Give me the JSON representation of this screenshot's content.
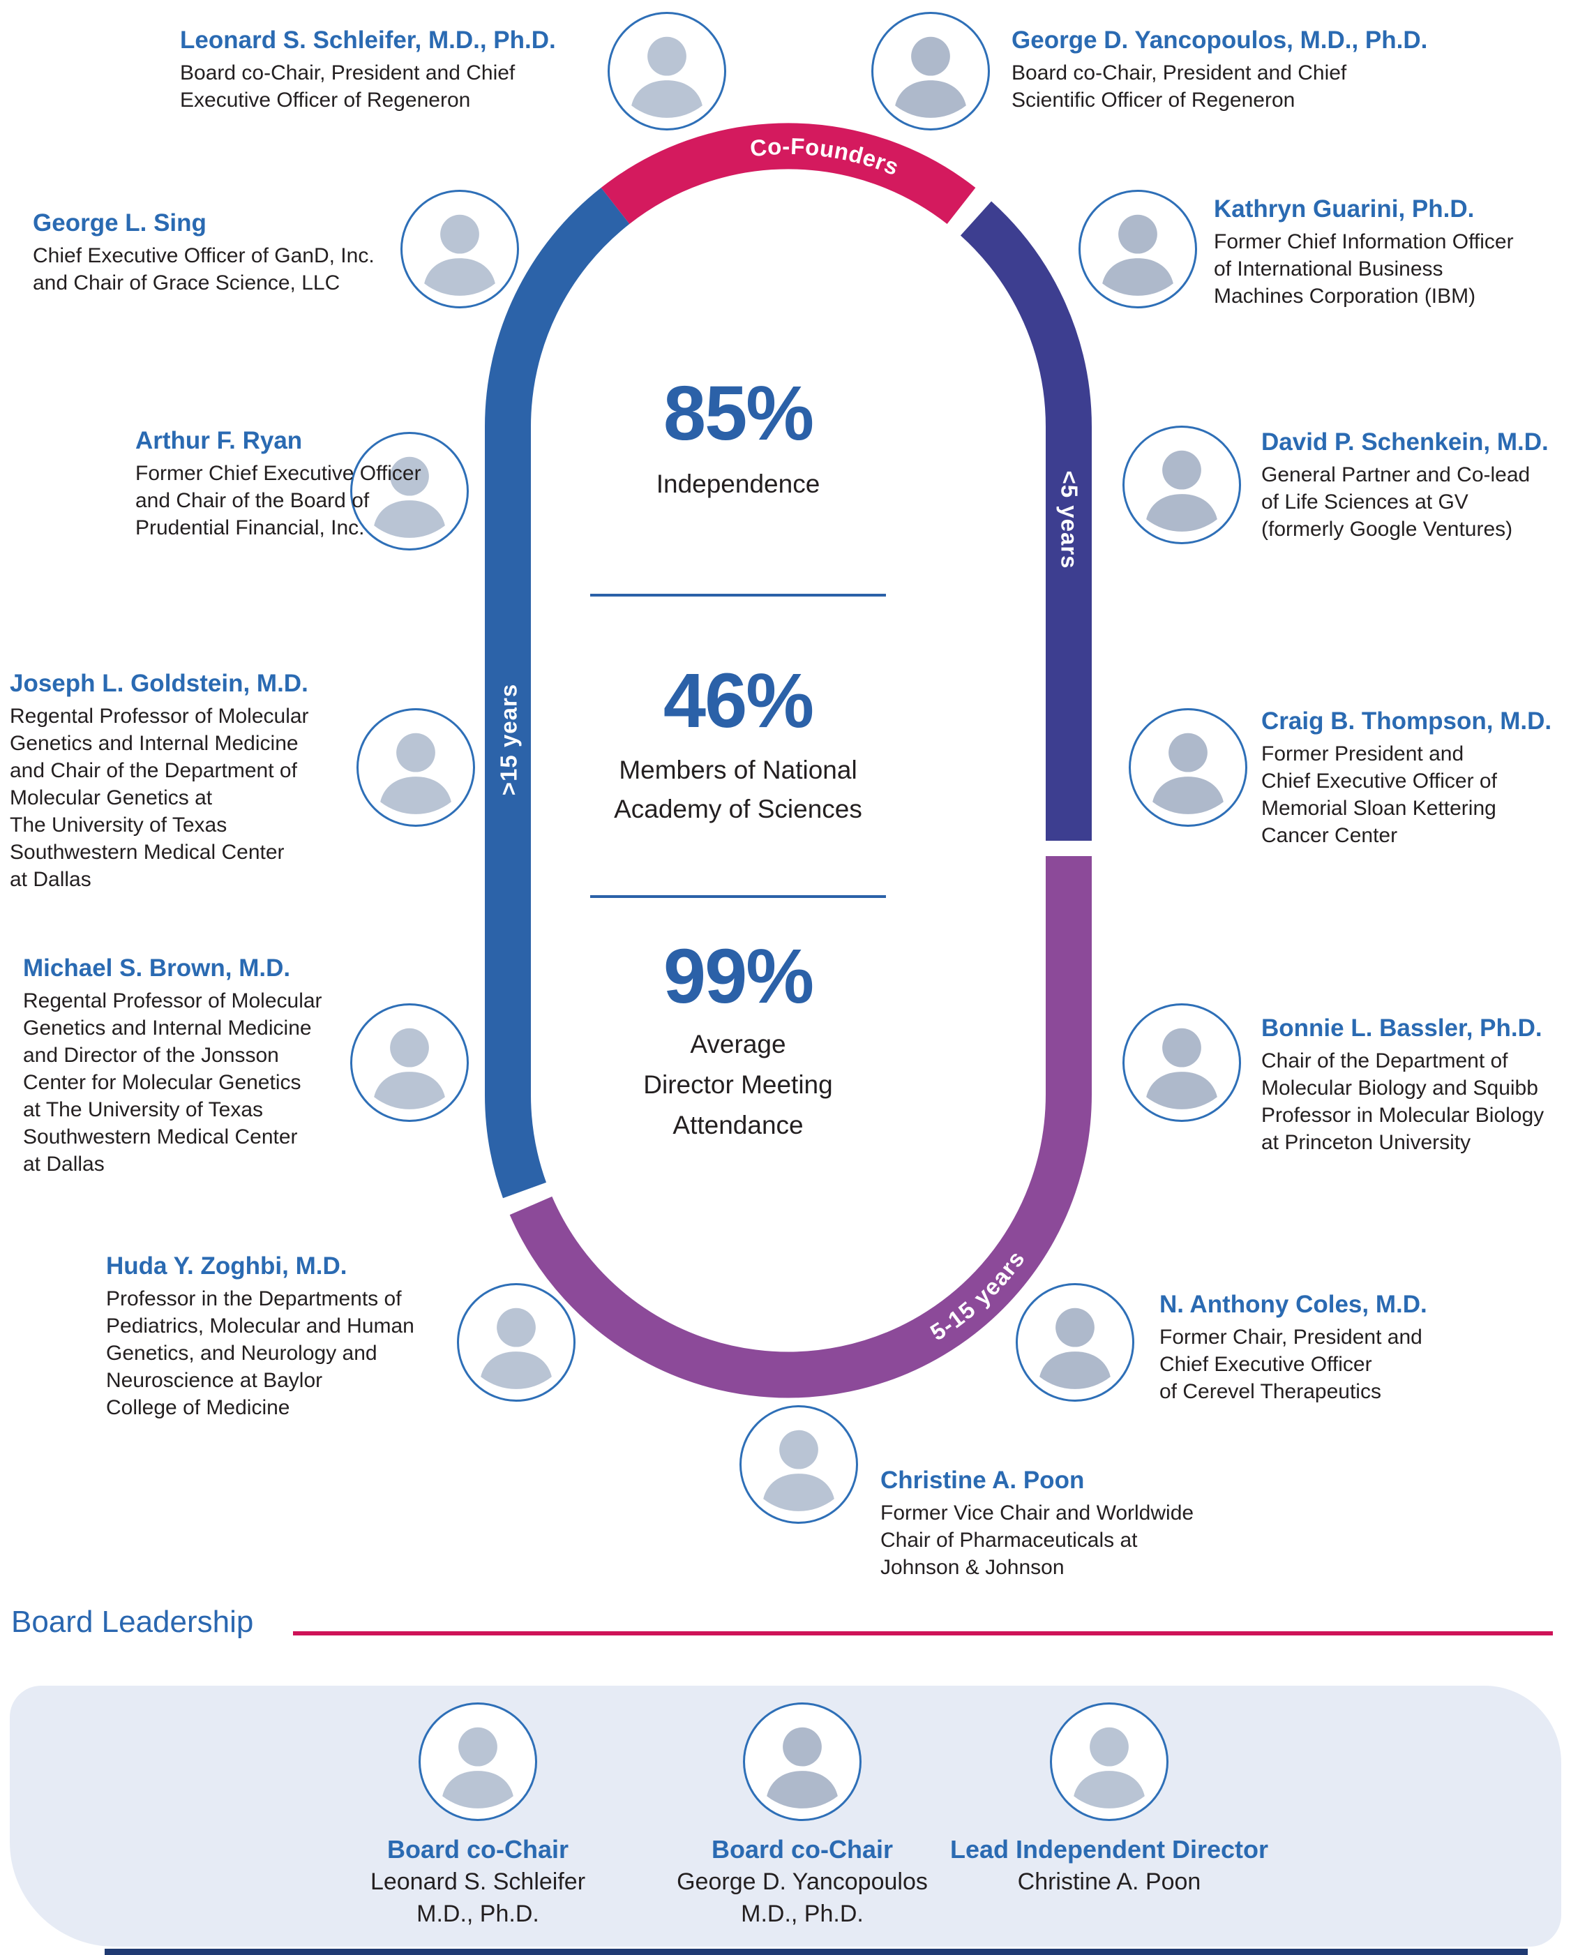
{
  "ring": {
    "segments": [
      {
        "id": "co-founders",
        "label": "Co-Founders",
        "color": "#d41a5e"
      },
      {
        "id": "less-5-years",
        "label": "<5 years",
        "color": "#3d3e90"
      },
      {
        "id": "5-15-years",
        "label": "5-15 years",
        "color": "#8c4a99"
      },
      {
        "id": "more-15-years",
        "label": ">15 years",
        "color": "#2c63a9"
      }
    ]
  },
  "stats": [
    {
      "value": "85%",
      "label_lines": [
        "Independence"
      ]
    },
    {
      "value": "46%",
      "label_lines": [
        "Members of National",
        "Academy of Sciences"
      ]
    },
    {
      "value": "99%",
      "label_lines": [
        "Average",
        "Director Meeting",
        "Attendance"
      ]
    }
  ],
  "members": [
    {
      "name": "Leonard S. Schleifer, M.D., Ph.D.",
      "title_lines": [
        "Board co-Chair, President and Chief",
        "Executive Officer of Regeneron"
      ]
    },
    {
      "name": "George D. Yancopoulos, M.D., Ph.D.",
      "title_lines": [
        "Board co-Chair, President and Chief",
        "Scientific Officer of Regeneron"
      ]
    },
    {
      "name": "George L. Sing",
      "title_lines": [
        "Chief Executive Officer of GanD, Inc.",
        "and Chair of Grace Science, LLC"
      ]
    },
    {
      "name": "Kathryn Guarini, Ph.D.",
      "title_lines": [
        "Former Chief Information Officer",
        "of International Business",
        "Machines Corporation (IBM)"
      ]
    },
    {
      "name": "Arthur F. Ryan",
      "title_lines": [
        "Former Chief Executive Officer",
        "and Chair of the Board of",
        "Prudential Financial, Inc."
      ]
    },
    {
      "name": "David P. Schenkein, M.D.",
      "title_lines": [
        "General Partner and Co-lead",
        "of Life Sciences at GV",
        "(formerly Google Ventures)"
      ]
    },
    {
      "name": "Joseph L. Goldstein, M.D.",
      "title_lines": [
        "Regental Professor of Molecular",
        "Genetics and Internal Medicine",
        "and Chair of the Department of",
        "Molecular Genetics at",
        "The University of Texas",
        "Southwestern Medical Center",
        "at Dallas"
      ]
    },
    {
      "name": "Craig B. Thompson, M.D.",
      "title_lines": [
        "Former President and",
        "Chief Executive Officer of",
        "Memorial Sloan Kettering",
        "Cancer Center"
      ]
    },
    {
      "name": "Michael S. Brown, M.D.",
      "title_lines": [
        "Regental Professor of Molecular",
        "Genetics and Internal Medicine",
        "and Director of the Jonsson",
        "Center for Molecular Genetics",
        "at The University of Texas",
        "Southwestern Medical Center",
        "at Dallas"
      ]
    },
    {
      "name": "Bonnie L. Bassler, Ph.D.",
      "title_lines": [
        "Chair of the Department of",
        "Molecular Biology and Squibb",
        "Professor in Molecular Biology",
        "at Princeton University"
      ]
    },
    {
      "name": "Huda Y. Zoghbi, M.D.",
      "title_lines": [
        "Professor in the Departments of",
        "Pediatrics, Molecular and Human",
        "Genetics, and Neurology and",
        "Neuroscience at Baylor",
        "College of Medicine"
      ]
    },
    {
      "name": "N. Anthony Coles, M.D.",
      "title_lines": [
        "Former Chair, President and",
        "Chief Executive Officer",
        "of Cerevel Therapeutics"
      ]
    },
    {
      "name": "Christine A. Poon",
      "title_lines": [
        "Former Vice Chair and Worldwide",
        "Chair of Pharmaceuticals at",
        "Johnson & Johnson"
      ]
    }
  ],
  "board_leadership": {
    "heading": "Board Leadership",
    "leaders": [
      {
        "role": "Board co-Chair",
        "name_lines": [
          "Leonard S. Schleifer",
          "M.D., Ph.D."
        ]
      },
      {
        "role": "Board co-Chair",
        "name_lines": [
          "George D. Yancopoulos",
          "M.D., Ph.D."
        ]
      },
      {
        "role": "Lead Independent Director",
        "name_lines": [
          "Christine A. Poon"
        ]
      }
    ]
  },
  "colors": {
    "magenta": "#d41a5e",
    "blue": "#2c63a9",
    "indigo": "#3d3e90",
    "purple": "#8c4a99",
    "name_blue": "#2a6ab2",
    "stat_blue": "#2b61a8",
    "text_dark": "#231f20",
    "panel_bg": "#e6ebf5",
    "rule_pink": "#ce1257",
    "heading_blue": "#2a67b0",
    "bottom_bar": "#203a72",
    "portrait_ring": "#2e6fb7"
  }
}
